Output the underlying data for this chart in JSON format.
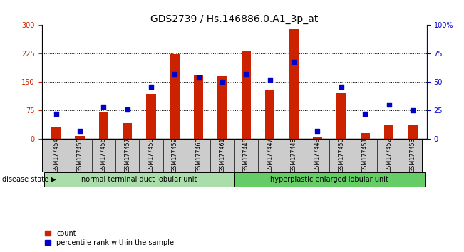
{
  "title": "GDS2739 / Hs.146886.0.A1_3p_at",
  "samples": [
    "GSM177454",
    "GSM177455",
    "GSM177456",
    "GSM177457",
    "GSM177458",
    "GSM177459",
    "GSM177460",
    "GSM177461",
    "GSM177446",
    "GSM177447",
    "GSM177448",
    "GSM177449",
    "GSM177450",
    "GSM177451",
    "GSM177452",
    "GSM177453"
  ],
  "counts": [
    32,
    8,
    72,
    42,
    118,
    224,
    170,
    165,
    232,
    130,
    290,
    6,
    120,
    15,
    38,
    38
  ],
  "percentiles": [
    22,
    7,
    28,
    26,
    46,
    57,
    54,
    50,
    57,
    52,
    68,
    7,
    46,
    22,
    30,
    25
  ],
  "group1_label": "normal terminal duct lobular unit",
  "group1_count": 8,
  "group2_label": "hyperplastic enlarged lobular unit",
  "group2_count": 8,
  "disease_state_label": "disease state",
  "left_yticks": [
    0,
    75,
    150,
    225,
    300
  ],
  "right_yticks": [
    0,
    25,
    50,
    75,
    100
  ],
  "right_yticklabels": [
    "0",
    "25",
    "50",
    "75",
    "100%"
  ],
  "ylim_left": [
    0,
    300
  ],
  "ylim_right": [
    0,
    100
  ],
  "bar_color": "#cc2200",
  "dot_color": "#0000cc",
  "group1_bg": "#aaddaa",
  "group2_bg": "#66cc66",
  "sample_bg": "#cccccc",
  "legend_count_label": "count",
  "legend_pct_label": "percentile rank within the sample",
  "title_fontsize": 10,
  "tick_fontsize": 7,
  "label_fontsize": 7
}
